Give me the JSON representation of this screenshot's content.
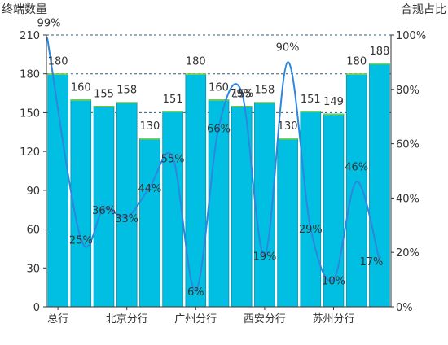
{
  "chart_data": {
    "type": "bar",
    "combo": "bar+line",
    "ylabel": "终端数量",
    "y2label": "合规占比",
    "ylim": [
      0,
      210
    ],
    "y_ticks": [
      "0",
      "30",
      "60",
      "90",
      "120",
      "150",
      "180",
      "210"
    ],
    "y2lim": [
      0,
      100
    ],
    "y2_ticks": [
      "0%",
      "20%",
      "40%",
      "60%",
      "80%",
      "100%"
    ],
    "x_tick_labels": [
      {
        "index": 0,
        "label": "总行"
      },
      {
        "index": 3,
        "label": "北京分行"
      },
      {
        "index": 6,
        "label": "广州分行"
      },
      {
        "index": 9,
        "label": "西安分行"
      },
      {
        "index": 12,
        "label": "苏州分行"
      }
    ],
    "grid": "dashed horizontal at 150, 180, 210",
    "series": [
      {
        "type": "bar",
        "values": [
          180,
          160,
          155,
          158,
          130,
          151,
          180,
          160,
          155,
          158,
          130,
          151,
          149,
          180,
          188
        ],
        "labels": [
          "180",
          "160",
          "155",
          "158",
          "130",
          "151",
          "180",
          "160",
          "155",
          "158",
          "130",
          "151",
          "149",
          "180",
          "188"
        ]
      },
      {
        "type": "line",
        "axis": "right",
        "smooth": true,
        "values": [
          99,
          25,
          36,
          33,
          44,
          55,
          6,
          66,
          79,
          19,
          90,
          29,
          10,
          46,
          17
        ],
        "labels": [
          "99%",
          "25%",
          "36%",
          "33%",
          "44%",
          "55%",
          "6%",
          "66%",
          "79%",
          "19%",
          "90%",
          "29%",
          "10%",
          "46%",
          "17%"
        ]
      }
    ],
    "colors": {
      "bar_fill": "#00BFE3",
      "bar_edge": "#0A8FA8",
      "bar_top": "#7FD23A",
      "line": "#2E86DE",
      "grid": "#2B5C7E",
      "axis": "#333333",
      "text": "#333333"
    }
  }
}
